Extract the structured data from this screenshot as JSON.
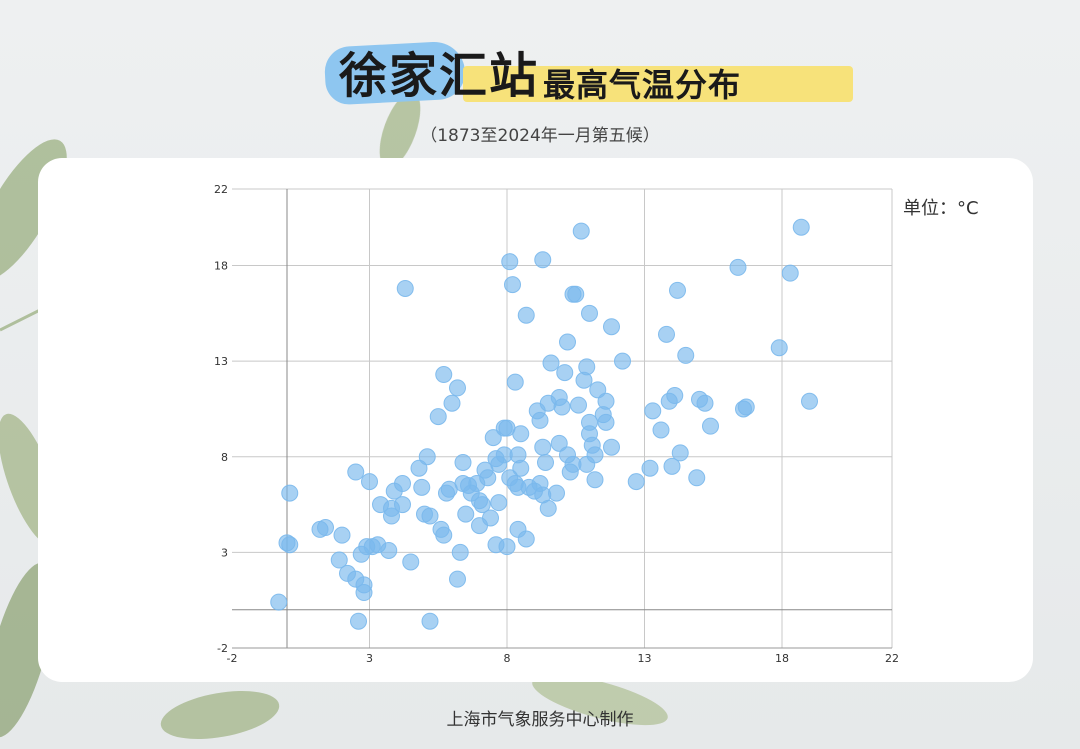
{
  "header": {
    "title_main": "徐家汇站",
    "title_sub": "最高气温分布",
    "subtitle": "（1873至2024年一月第五候）"
  },
  "unit_label": "单位：°C",
  "footer": "上海市气象服务中心制作",
  "colors": {
    "point": "#7ab8ec",
    "grid": "#c8c8c8",
    "accent_blue": "#8ec6f0",
    "accent_yellow": "#f7e27a"
  },
  "chart_data": {
    "type": "scatter",
    "title": "",
    "xlabel": "",
    "ylabel": "",
    "xlim": [
      -2,
      22
    ],
    "ylim": [
      -2,
      22
    ],
    "xticks": [
      "-2",
      "3",
      "8",
      "13",
      "18",
      "22"
    ],
    "yticks": [
      "-2",
      "3",
      "8",
      "13",
      "18",
      "22"
    ],
    "grid": true,
    "series": [
      {
        "points": [
          [
            -0.3,
            0.4
          ],
          [
            0.0,
            3.5
          ],
          [
            0.1,
            3.4
          ],
          [
            0.1,
            6.1
          ],
          [
            1.2,
            4.2
          ],
          [
            1.4,
            4.3
          ],
          [
            2.0,
            3.9
          ],
          [
            1.9,
            2.6
          ],
          [
            2.2,
            1.9
          ],
          [
            2.5,
            7.2
          ],
          [
            2.5,
            1.6
          ],
          [
            2.6,
            -0.6
          ],
          [
            2.7,
            2.9
          ],
          [
            2.8,
            1.3
          ],
          [
            2.8,
            0.9
          ],
          [
            2.9,
            3.3
          ],
          [
            3.0,
            6.7
          ],
          [
            3.1,
            3.3
          ],
          [
            3.3,
            3.4
          ],
          [
            3.4,
            5.5
          ],
          [
            3.7,
            3.1
          ],
          [
            3.8,
            4.9
          ],
          [
            3.9,
            6.2
          ],
          [
            3.8,
            5.3
          ],
          [
            4.2,
            6.6
          ],
          [
            4.2,
            5.5
          ],
          [
            4.3,
            16.8
          ],
          [
            4.5,
            2.5
          ],
          [
            4.8,
            7.4
          ],
          [
            4.9,
            6.4
          ],
          [
            5.0,
            5.0
          ],
          [
            5.1,
            8.0
          ],
          [
            5.2,
            4.9
          ],
          [
            5.2,
            -0.6
          ],
          [
            5.5,
            10.1
          ],
          [
            5.6,
            4.2
          ],
          [
            5.7,
            3.9
          ],
          [
            5.7,
            12.3
          ],
          [
            5.8,
            6.1
          ],
          [
            5.9,
            6.3
          ],
          [
            6.0,
            10.8
          ],
          [
            6.2,
            11.6
          ],
          [
            6.2,
            1.6
          ],
          [
            6.3,
            3.0
          ],
          [
            6.4,
            6.6
          ],
          [
            6.4,
            7.7
          ],
          [
            6.5,
            5.0
          ],
          [
            6.6,
            6.5
          ],
          [
            6.7,
            6.1
          ],
          [
            6.9,
            6.6
          ],
          [
            7.0,
            4.4
          ],
          [
            7.0,
            5.7
          ],
          [
            7.1,
            5.5
          ],
          [
            7.2,
            7.3
          ],
          [
            7.3,
            6.9
          ],
          [
            7.4,
            4.8
          ],
          [
            7.5,
            9.0
          ],
          [
            7.6,
            3.4
          ],
          [
            7.6,
            7.9
          ],
          [
            7.7,
            7.6
          ],
          [
            7.7,
            5.6
          ],
          [
            7.9,
            8.1
          ],
          [
            7.9,
            9.5
          ],
          [
            8.0,
            9.5
          ],
          [
            8.0,
            3.3
          ],
          [
            8.1,
            6.9
          ],
          [
            8.1,
            18.2
          ],
          [
            8.2,
            17.0
          ],
          [
            8.3,
            11.9
          ],
          [
            8.3,
            6.6
          ],
          [
            8.4,
            8.1
          ],
          [
            8.4,
            6.4
          ],
          [
            8.4,
            4.2
          ],
          [
            8.5,
            9.2
          ],
          [
            8.5,
            7.4
          ],
          [
            8.7,
            15.4
          ],
          [
            8.7,
            3.7
          ],
          [
            8.8,
            6.4
          ],
          [
            9.0,
            6.2
          ],
          [
            9.1,
            10.4
          ],
          [
            9.2,
            9.9
          ],
          [
            9.2,
            6.6
          ],
          [
            9.3,
            8.5
          ],
          [
            9.3,
            6.0
          ],
          [
            9.3,
            18.3
          ],
          [
            9.4,
            7.7
          ],
          [
            9.5,
            10.8
          ],
          [
            9.5,
            5.3
          ],
          [
            9.6,
            12.9
          ],
          [
            9.8,
            6.1
          ],
          [
            9.9,
            11.1
          ],
          [
            9.9,
            8.7
          ],
          [
            10.0,
            10.6
          ],
          [
            10.1,
            12.4
          ],
          [
            10.2,
            14.0
          ],
          [
            10.2,
            8.1
          ],
          [
            10.3,
            7.2
          ],
          [
            10.4,
            7.6
          ],
          [
            10.4,
            16.5
          ],
          [
            10.5,
            16.5
          ],
          [
            10.6,
            10.7
          ],
          [
            10.7,
            19.8
          ],
          [
            10.8,
            12.0
          ],
          [
            10.9,
            12.7
          ],
          [
            10.9,
            7.6
          ],
          [
            11.0,
            15.5
          ],
          [
            11.0,
            9.8
          ],
          [
            11.0,
            9.2
          ],
          [
            11.1,
            8.6
          ],
          [
            11.2,
            8.1
          ],
          [
            11.2,
            6.8
          ],
          [
            11.3,
            11.5
          ],
          [
            11.5,
            10.2
          ],
          [
            11.6,
            9.8
          ],
          [
            11.6,
            10.9
          ],
          [
            11.8,
            14.8
          ],
          [
            11.8,
            8.5
          ],
          [
            12.2,
            13.0
          ],
          [
            12.7,
            6.7
          ],
          [
            13.2,
            7.4
          ],
          [
            13.3,
            10.4
          ],
          [
            13.6,
            9.4
          ],
          [
            13.8,
            14.4
          ],
          [
            13.9,
            10.9
          ],
          [
            14.0,
            7.5
          ],
          [
            14.1,
            11.2
          ],
          [
            14.2,
            16.7
          ],
          [
            14.3,
            8.2
          ],
          [
            14.5,
            13.3
          ],
          [
            14.9,
            6.9
          ],
          [
            15.0,
            11.0
          ],
          [
            15.2,
            10.8
          ],
          [
            15.4,
            9.6
          ],
          [
            16.4,
            17.9
          ],
          [
            16.6,
            10.5
          ],
          [
            16.7,
            10.6
          ],
          [
            17.9,
            13.7
          ],
          [
            18.3,
            17.6
          ],
          [
            18.7,
            20.0
          ],
          [
            19.0,
            10.9
          ]
        ]
      }
    ]
  }
}
